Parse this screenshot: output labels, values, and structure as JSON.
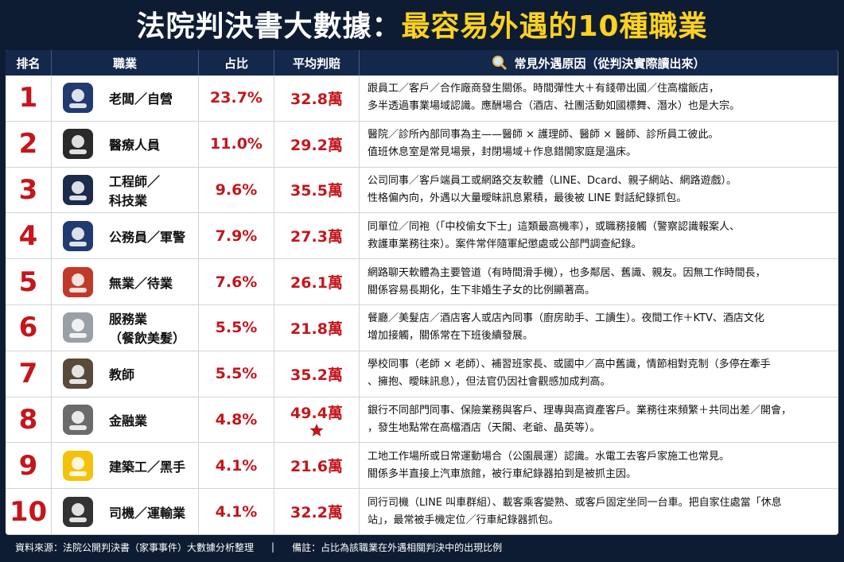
{
  "title": {
    "main": "法院判決書大數據：",
    "highlight": "最容易外遇的10種職業"
  },
  "table": {
    "headers": [
      "排名",
      "職業",
      "占比",
      "平均判賠",
      "常見外遇原因（從判決實際讀出來）"
    ],
    "rows": [
      {
        "rank": "1",
        "occupation": [
          "老闆／自營"
        ],
        "share": "23.7%",
        "award": "32.8萬",
        "reason": [
          "跟員工／客戶／合作廠商發生關係。時間彈性大＋有錢帶出國／住高檔飯店，",
          "多半透過事業場域認識。應酬場合（酒店、社團活動如國標舞、潛水）也是大宗。"
        ]
      },
      {
        "rank": "2",
        "occupation": [
          "醫療人員"
        ],
        "share": "11.0%",
        "award": "29.2萬",
        "reason": [
          "醫院／診所內部同事為主——醫師 × 護理師、醫師 × 醫師、診所員工彼此。",
          "值班休息室是常見場景，封閉場域＋作息錯開家庭是溫床。"
        ]
      },
      {
        "rank": "3",
        "occupation": [
          "工程師／",
          "科技業"
        ],
        "share": "9.6%",
        "award": "35.5萬",
        "reason": [
          "公司同事／客戶端員工或網路交友軟體（LINE、Dcard、親子網站、網路遊戲）。",
          "性格偏內向，外遇以大量曖昧訊息累積，最後被 LINE 對話紀錄抓包。"
        ]
      },
      {
        "rank": "4",
        "occupation": [
          "公務員／軍警"
        ],
        "share": "7.9%",
        "award": "27.3萬",
        "reason": [
          "同單位／同袍（「中校偷女下士」這類最高機率），或職務接觸（警察認識報案人、",
          "救護車業務往來）。案件常伴隨軍紀懲處或公部門調查紀錄。"
        ]
      },
      {
        "rank": "5",
        "occupation": [
          "無業／待業"
        ],
        "share": "7.6%",
        "award": "26.1萬",
        "reason": [
          "網路聊天軟體為主要管道（有時間滑手機），也多鄰居、舊識、親友。因無工作時間長，",
          "關係容易長期化，生下非婚生子女的比例顯著高。"
        ]
      },
      {
        "rank": "6",
        "occupation": [
          "服務業",
          "（餐飲美髮）"
        ],
        "share": "5.5%",
        "award": "21.8萬",
        "reason": [
          "餐廳／美髮店／酒店客人或店內同事（廚房助手、工讀生）。夜間工作＋KTV、酒店文化",
          "增加接觸，關係常在下班後續發展。"
        ]
      },
      {
        "rank": "7",
        "occupation": [
          "教師"
        ],
        "share": "5.5%",
        "award": "35.2萬",
        "reason": [
          "學校同事（老師 × 老師）、補習班家長、或國中／高中舊識，情節相對克制（多停在牽手",
          "、擁抱、曖昧訊息），但法官仍因社會觀感加成判高。"
        ]
      },
      {
        "rank": "8",
        "occupation": [
          "金融業"
        ],
        "share": "4.8%",
        "award": "49.4萬",
        "reason": [
          "銀行不同部門同事、保險業務與客戶、理專與高資產客戶。業務往來頻繁＋共同出差／開會，",
          "，發生地點常在高檔酒店（天閣、老爺、晶英等）。"
        ]
      },
      {
        "rank": "9",
        "occupation": [
          "建築工／黑手"
        ],
        "share": "4.1%",
        "award": "21.6萬",
        "reason": [
          "工地工作場所或日常運動場合（公園晨運）認識。水電工去客戶家施工也常見。",
          "關係多半直接上汽車旅館，被行車紀錄器拍到是被抓主因。"
        ]
      },
      {
        "rank": "10",
        "occupation": [
          "司機／運輸業"
        ],
        "share": "4.1%",
        "award": "32.2萬",
        "reason": [
          "同行司機（LINE 叫車群組）、載客乘客變熟、或客戶固定坐同一台車。把自家住處當「休息",
          "站」，最常被手機定位／行車紀錄器抓包。"
        ]
      }
    ]
  },
  "footer": {
    "source": "資料來源：法院公開判決書（家事事件）大數據分析整理",
    "separator": "|",
    "note": "備註：占比為該職業在外遇相關判決中的出現比例"
  }
}
